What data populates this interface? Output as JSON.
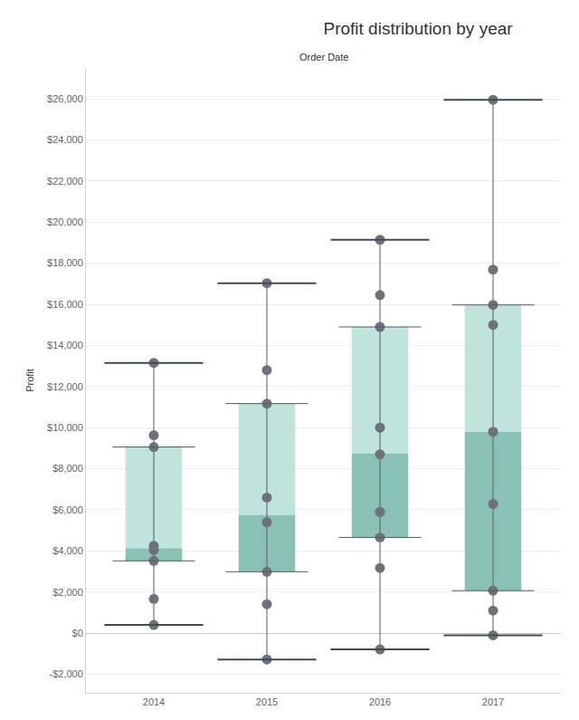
{
  "chart_data": {
    "type": "box",
    "title": "Profit distribution by year",
    "xlabel": "Order Date",
    "ylabel": "Profit",
    "categories": [
      "2014",
      "2015",
      "2016",
      "2017"
    ],
    "boxes": [
      {
        "lowerfence": 400,
        "q1": 3520,
        "median": 4140,
        "q3": 9060,
        "upperfence": 13150
      },
      {
        "lowerfence": -1280,
        "q1": 2990,
        "median": 5760,
        "q3": 11170,
        "upperfence": 17030
      },
      {
        "lowerfence": -790,
        "q1": 4660,
        "median": 8750,
        "q3": 14900,
        "upperfence": 19140
      },
      {
        "lowerfence": -100,
        "q1": 2070,
        "median": 9810,
        "q3": 15970,
        "upperfence": 25950
      }
    ],
    "points": [
      [
        13150,
        9630,
        9060,
        4250,
        4050,
        3520,
        1670,
        400
      ],
      [
        17030,
        12800,
        11170,
        6600,
        5400,
        2990,
        1410,
        -1280
      ],
      [
        19140,
        16450,
        14900,
        10000,
        8700,
        5900,
        4660,
        3170,
        -790
      ],
      [
        25950,
        17690,
        15970,
        15000,
        9800,
        6290,
        2070,
        1100,
        -100
      ]
    ],
    "color": "#6e7179",
    "ylim": [
      -2900,
      27500
    ],
    "yticks": [
      {
        "value": -2000,
        "label": "-$2,000"
      },
      {
        "value": 0,
        "label": "$0"
      },
      {
        "value": 2000,
        "label": "$2,000"
      },
      {
        "value": 4000,
        "label": "$4,000"
      },
      {
        "value": 6000,
        "label": "$6,000"
      },
      {
        "value": 8000,
        "label": "$8,000"
      },
      {
        "value": 10000,
        "label": "$10,000"
      },
      {
        "value": 12000,
        "label": "$12,000"
      },
      {
        "value": 14000,
        "label": "$14,000"
      },
      {
        "value": 16000,
        "label": "$16,000"
      },
      {
        "value": 18000,
        "label": "$18,000"
      },
      {
        "value": 20000,
        "label": "$20,000"
      },
      {
        "value": 22000,
        "label": "$22,000"
      },
      {
        "value": 24000,
        "label": "$24,000"
      },
      {
        "value": 26000,
        "label": "$26,000"
      }
    ],
    "grid": true
  }
}
